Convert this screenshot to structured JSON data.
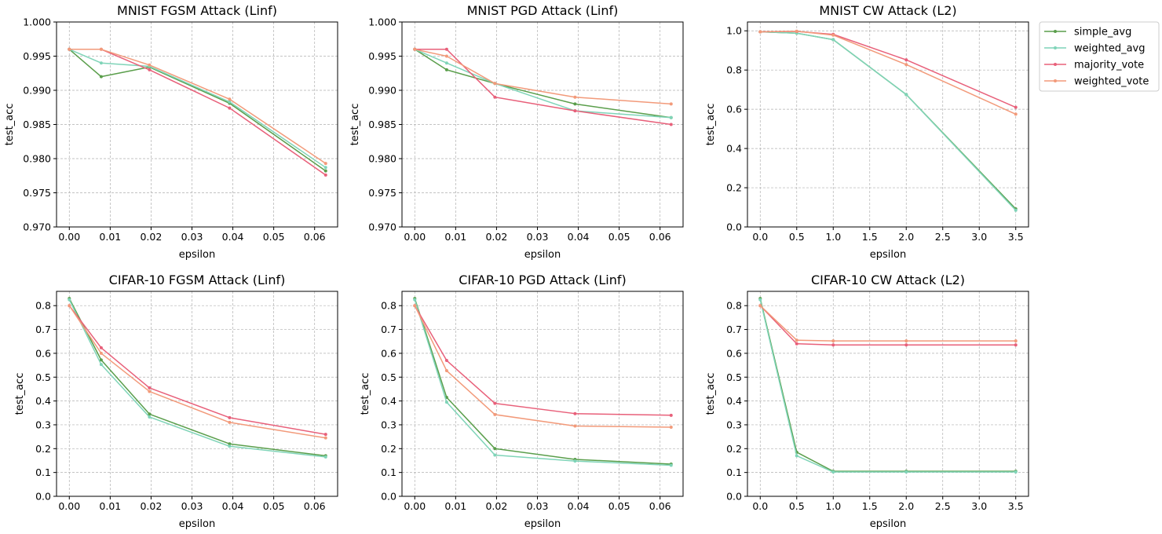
{
  "colors": {
    "simple_avg": "#5a9e4b",
    "weighted_avg": "#7fd4b8",
    "majority_vote": "#e8607a",
    "weighted_vote": "#f29a7a",
    "grid": "#b0b0b0"
  },
  "legend": {
    "placement": "outside-right of top-right subplot",
    "entries": [
      "simple_avg",
      "weighted_avg",
      "majority_vote",
      "weighted_vote"
    ]
  },
  "chart_data": [
    {
      "type": "line",
      "title": "MNIST FGSM Attack (Linf)",
      "xlabel": "epsilon",
      "ylabel": "test_acc",
      "xlim": [
        -0.003125,
        0.065625
      ],
      "ylim": [
        0.97,
        1.0
      ],
      "xticks": [
        0.0,
        0.01,
        0.02,
        0.03,
        0.04,
        0.05,
        0.06
      ],
      "xtick_labels": [
        "0.00",
        "0.01",
        "0.02",
        "0.03",
        "0.04",
        "0.05",
        "0.06"
      ],
      "yticks": [
        0.97,
        0.975,
        0.98,
        0.985,
        0.99,
        0.995,
        1.0
      ],
      "ytick_labels": [
        "0.970",
        "0.975",
        "0.980",
        "0.985",
        "0.990",
        "0.995",
        "1.000"
      ],
      "grid": true,
      "x": [
        0.0,
        0.0078,
        0.0196,
        0.0392,
        0.0627
      ],
      "series": [
        {
          "name": "simple_avg",
          "values": [
            0.996,
            0.992,
            0.9934,
            0.9881,
            0.9782
          ]
        },
        {
          "name": "weighted_avg",
          "values": [
            0.996,
            0.994,
            0.9935,
            0.9883,
            0.9787
          ]
        },
        {
          "name": "majority_vote",
          "values": [
            0.996,
            0.996,
            0.993,
            0.9874,
            0.9776
          ]
        },
        {
          "name": "weighted_vote",
          "values": [
            0.996,
            0.996,
            0.9937,
            0.9887,
            0.9793
          ]
        }
      ]
    },
    {
      "type": "line",
      "title": "MNIST PGD Attack (Linf)",
      "xlabel": "epsilon",
      "ylabel": "test_acc",
      "xlim": [
        -0.003125,
        0.065625
      ],
      "ylim": [
        0.97,
        1.0
      ],
      "xticks": [
        0.0,
        0.01,
        0.02,
        0.03,
        0.04,
        0.05,
        0.06
      ],
      "xtick_labels": [
        "0.00",
        "0.01",
        "0.02",
        "0.03",
        "0.04",
        "0.05",
        "0.06"
      ],
      "yticks": [
        0.97,
        0.975,
        0.98,
        0.985,
        0.99,
        0.995,
        1.0
      ],
      "ytick_labels": [
        "0.970",
        "0.975",
        "0.980",
        "0.985",
        "0.990",
        "0.995",
        "1.000"
      ],
      "grid": true,
      "x": [
        0.0,
        0.0078,
        0.0196,
        0.0392,
        0.0627
      ],
      "series": [
        {
          "name": "simple_avg",
          "values": [
            0.996,
            0.993,
            0.991,
            0.988,
            0.986
          ]
        },
        {
          "name": "weighted_avg",
          "values": [
            0.996,
            0.994,
            0.991,
            0.987,
            0.986
          ]
        },
        {
          "name": "majority_vote",
          "values": [
            0.996,
            0.996,
            0.989,
            0.987,
            0.985
          ]
        },
        {
          "name": "weighted_vote",
          "values": [
            0.996,
            0.995,
            0.991,
            0.989,
            0.988
          ]
        }
      ]
    },
    {
      "type": "line",
      "title": "MNIST CW Attack (L2)",
      "xlabel": "epsilon",
      "ylabel": "test_acc",
      "xlim": [
        -0.175,
        3.675
      ],
      "ylim": [
        0.0,
        1.045
      ],
      "xticks": [
        0.0,
        0.5,
        1.0,
        1.5,
        2.0,
        2.5,
        3.0,
        3.5
      ],
      "xtick_labels": [
        "0.0",
        "0.5",
        "1.0",
        "1.5",
        "2.0",
        "2.5",
        "3.0",
        "3.5"
      ],
      "yticks": [
        0.0,
        0.2,
        0.4,
        0.6,
        0.8,
        1.0
      ],
      "ytick_labels": [
        "0.0",
        "0.2",
        "0.4",
        "0.6",
        "0.8",
        "1.0"
      ],
      "grid": true,
      "x": [
        0.0,
        0.5,
        1.0,
        2.0,
        3.5
      ],
      "series": [
        {
          "name": "simple_avg",
          "values": [
            0.995,
            0.988,
            0.955,
            0.675,
            0.092
          ]
        },
        {
          "name": "weighted_avg",
          "values": [
            0.995,
            0.988,
            0.955,
            0.675,
            0.085
          ]
        },
        {
          "name": "majority_vote",
          "values": [
            0.995,
            0.997,
            0.982,
            0.852,
            0.61
          ]
        },
        {
          "name": "weighted_vote",
          "values": [
            0.995,
            0.998,
            0.978,
            0.828,
            0.575
          ]
        }
      ]
    },
    {
      "type": "line",
      "title": "CIFAR-10 FGSM Attack (Linf)",
      "xlabel": "epsilon",
      "ylabel": "test_acc",
      "xlim": [
        -0.003125,
        0.065625
      ],
      "ylim": [
        0.0,
        0.86
      ],
      "xticks": [
        0.0,
        0.01,
        0.02,
        0.03,
        0.04,
        0.05,
        0.06
      ],
      "xtick_labels": [
        "0.00",
        "0.01",
        "0.02",
        "0.03",
        "0.04",
        "0.05",
        "0.06"
      ],
      "yticks": [
        0.0,
        0.1,
        0.2,
        0.3,
        0.4,
        0.5,
        0.6,
        0.7,
        0.8
      ],
      "ytick_labels": [
        "0.0",
        "0.1",
        "0.2",
        "0.3",
        "0.4",
        "0.5",
        "0.6",
        "0.7",
        "0.8"
      ],
      "grid": true,
      "x": [
        0.0,
        0.0078,
        0.0196,
        0.0392,
        0.0627
      ],
      "series": [
        {
          "name": "simple_avg",
          "values": [
            0.83,
            0.572,
            0.345,
            0.22,
            0.17
          ]
        },
        {
          "name": "weighted_avg",
          "values": [
            0.825,
            0.553,
            0.333,
            0.21,
            0.165
          ]
        },
        {
          "name": "majority_vote",
          "values": [
            0.8,
            0.623,
            0.455,
            0.33,
            0.26
          ]
        },
        {
          "name": "weighted_vote",
          "values": [
            0.8,
            0.6,
            0.44,
            0.31,
            0.245
          ]
        }
      ]
    },
    {
      "type": "line",
      "title": "CIFAR-10 PGD Attack (Linf)",
      "xlabel": "epsilon",
      "ylabel": "test_acc",
      "xlim": [
        -0.003125,
        0.065625
      ],
      "ylim": [
        0.0,
        0.86
      ],
      "xticks": [
        0.0,
        0.01,
        0.02,
        0.03,
        0.04,
        0.05,
        0.06
      ],
      "xtick_labels": [
        "0.00",
        "0.01",
        "0.02",
        "0.03",
        "0.04",
        "0.05",
        "0.06"
      ],
      "yticks": [
        0.0,
        0.1,
        0.2,
        0.3,
        0.4,
        0.5,
        0.6,
        0.7,
        0.8
      ],
      "ytick_labels": [
        "0.0",
        "0.1",
        "0.2",
        "0.3",
        "0.4",
        "0.5",
        "0.6",
        "0.7",
        "0.8"
      ],
      "grid": true,
      "x": [
        0.0,
        0.0078,
        0.0196,
        0.0392,
        0.0627
      ],
      "series": [
        {
          "name": "simple_avg",
          "values": [
            0.83,
            0.415,
            0.2,
            0.155,
            0.135
          ]
        },
        {
          "name": "weighted_avg",
          "values": [
            0.825,
            0.395,
            0.173,
            0.148,
            0.13
          ]
        },
        {
          "name": "majority_vote",
          "values": [
            0.8,
            0.57,
            0.39,
            0.347,
            0.34
          ]
        },
        {
          "name": "weighted_vote",
          "values": [
            0.8,
            0.527,
            0.343,
            0.295,
            0.29
          ]
        }
      ]
    },
    {
      "type": "line",
      "title": "CIFAR-10 CW Attack (L2)",
      "xlabel": "epsilon",
      "ylabel": "test_acc",
      "xlim": [
        -0.175,
        3.675
      ],
      "ylim": [
        0.0,
        0.86
      ],
      "xticks": [
        0.0,
        0.5,
        1.0,
        1.5,
        2.0,
        2.5,
        3.0,
        3.5
      ],
      "xtick_labels": [
        "0.0",
        "0.5",
        "1.0",
        "1.5",
        "2.0",
        "2.5",
        "3.0",
        "3.5"
      ],
      "yticks": [
        0.0,
        0.1,
        0.2,
        0.3,
        0.4,
        0.5,
        0.6,
        0.7,
        0.8
      ],
      "ytick_labels": [
        "0.0",
        "0.1",
        "0.2",
        "0.3",
        "0.4",
        "0.5",
        "0.6",
        "0.7",
        "0.8"
      ],
      "grid": true,
      "x": [
        0.0,
        0.5,
        1.0,
        2.0,
        3.5
      ],
      "series": [
        {
          "name": "simple_avg",
          "values": [
            0.83,
            0.185,
            0.105,
            0.105,
            0.105
          ]
        },
        {
          "name": "weighted_avg",
          "values": [
            0.825,
            0.17,
            0.102,
            0.102,
            0.102
          ]
        },
        {
          "name": "majority_vote",
          "values": [
            0.8,
            0.64,
            0.635,
            0.635,
            0.635
          ]
        },
        {
          "name": "weighted_vote",
          "values": [
            0.8,
            0.655,
            0.652,
            0.652,
            0.652
          ]
        }
      ]
    }
  ]
}
